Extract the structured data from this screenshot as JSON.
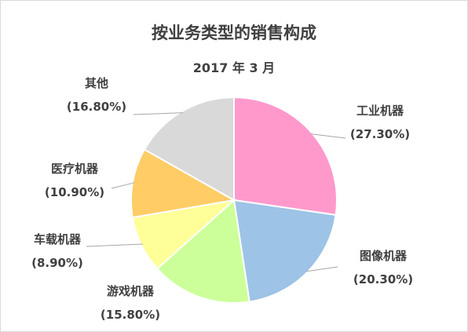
{
  "chart_data": {
    "type": "pie",
    "title": "按业务类型的销售构成",
    "subtitle": "2017 年 3 月",
    "categories": [
      "工业机器",
      "图像机器",
      "游戏机器",
      "车载机器",
      "医疗机器",
      "其他"
    ],
    "values": [
      27.3,
      20.3,
      15.8,
      8.9,
      10.9,
      16.8
    ],
    "value_labels": [
      "(27.30%)",
      "(20.30%)",
      "(15.80%)",
      "(8.90%)",
      "(10.90%)",
      "(16.80%)"
    ],
    "colors": [
      "#ff99cc",
      "#9dc3e6",
      "#ccff99",
      "#ffff99",
      "#ffcc66",
      "#d9d9d9"
    ],
    "start": "12 o'clock, clockwise",
    "legend": "none",
    "grid": false
  }
}
